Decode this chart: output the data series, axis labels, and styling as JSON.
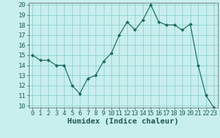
{
  "x": [
    0,
    1,
    2,
    3,
    4,
    5,
    6,
    7,
    8,
    9,
    10,
    11,
    12,
    13,
    14,
    15,
    16,
    17,
    18,
    19,
    20,
    21,
    22,
    23
  ],
  "y": [
    15.0,
    14.5,
    14.5,
    14.0,
    14.0,
    12.0,
    11.2,
    12.7,
    13.0,
    14.4,
    15.2,
    17.0,
    18.3,
    17.5,
    18.5,
    20.0,
    18.3,
    18.0,
    18.0,
    17.5,
    18.1,
    14.0,
    11.0,
    9.8
  ],
  "xlabel": "Humidex (Indice chaleur)",
  "ylim": [
    10,
    20
  ],
  "xlim": [
    -0.5,
    23.5
  ],
  "yticks": [
    10,
    11,
    12,
    13,
    14,
    15,
    16,
    17,
    18,
    19,
    20
  ],
  "xticks": [
    0,
    1,
    2,
    3,
    4,
    5,
    6,
    7,
    8,
    9,
    10,
    11,
    12,
    13,
    14,
    15,
    16,
    17,
    18,
    19,
    20,
    21,
    22,
    23
  ],
  "line_color": "#1a6b5a",
  "marker_color": "#1a6b5a",
  "bg_color": "#c8eeee",
  "grid_color": "#8ecece",
  "xlabel_fontsize": 8,
  "tick_fontsize": 6.5
}
